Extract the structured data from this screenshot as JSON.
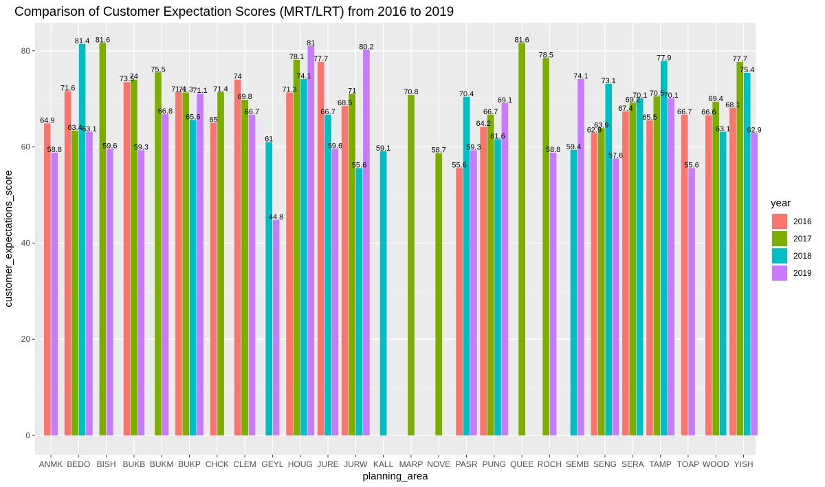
{
  "chart_data": {
    "type": "bar",
    "title": "Comparison of Customer Expectation Scores (MRT/LRT) from 2016 to 2019",
    "xlabel": "planning_area",
    "ylabel": "customer_expectations_score",
    "ylim": [
      0,
      85
    ],
    "yticks": [
      0,
      20,
      40,
      60,
      80
    ],
    "grid": true,
    "legend": {
      "title": "year",
      "placement": "right"
    },
    "years": [
      "2016",
      "2017",
      "2018",
      "2019"
    ],
    "colors": {
      "2016": "#F8766D",
      "2017": "#7CAE00",
      "2018": "#00BFC4",
      "2019": "#C77CFF"
    },
    "categories": [
      "ANMK",
      "BEDO",
      "BISH",
      "BUKB",
      "BUKM",
      "BUKP",
      "CHCK",
      "CLEM",
      "GEYL",
      "HOUG",
      "JURE",
      "JURW",
      "KALL",
      "MARP",
      "NOVE",
      "PASR",
      "PUNG",
      "QUEE",
      "ROCH",
      "SEMB",
      "SENG",
      "SERA",
      "TAMP",
      "TOAP",
      "WOOD",
      "YISH"
    ],
    "series": [
      {
        "name": "2016",
        "values": [
          64.9,
          71.6,
          null,
          73.5,
          null,
          71.4,
          65,
          74,
          null,
          71.3,
          77.7,
          68.5,
          null,
          null,
          null,
          55.6,
          64.2,
          null,
          null,
          null,
          62.9,
          67.4,
          65.5,
          66.7,
          66.6,
          68.1
        ]
      },
      {
        "name": "2017",
        "values": [
          null,
          63.4,
          81.6,
          74,
          75.5,
          71.3,
          71.4,
          69.8,
          null,
          78.1,
          null,
          71,
          null,
          70.8,
          58.7,
          null,
          66.7,
          81.6,
          78.5,
          null,
          63.9,
          69.2,
          70.5,
          null,
          69.4,
          77.7
        ]
      },
      {
        "name": "2018",
        "values": [
          null,
          81.4,
          null,
          null,
          null,
          65.6,
          null,
          null,
          61,
          74.1,
          66.7,
          55.6,
          59.1,
          null,
          null,
          70.4,
          61.6,
          null,
          null,
          59.4,
          73.1,
          70.1,
          77.9,
          null,
          63.1,
          75.4
        ]
      },
      {
        "name": "2019",
        "values": [
          58.8,
          63.1,
          59.6,
          59.3,
          66.8,
          71.1,
          null,
          66.7,
          44.8,
          81,
          59.6,
          80.2,
          null,
          null,
          null,
          59.3,
          69.1,
          null,
          58.8,
          74.1,
          57.6,
          null,
          70.1,
          55.6,
          null,
          62.9
        ]
      }
    ]
  }
}
